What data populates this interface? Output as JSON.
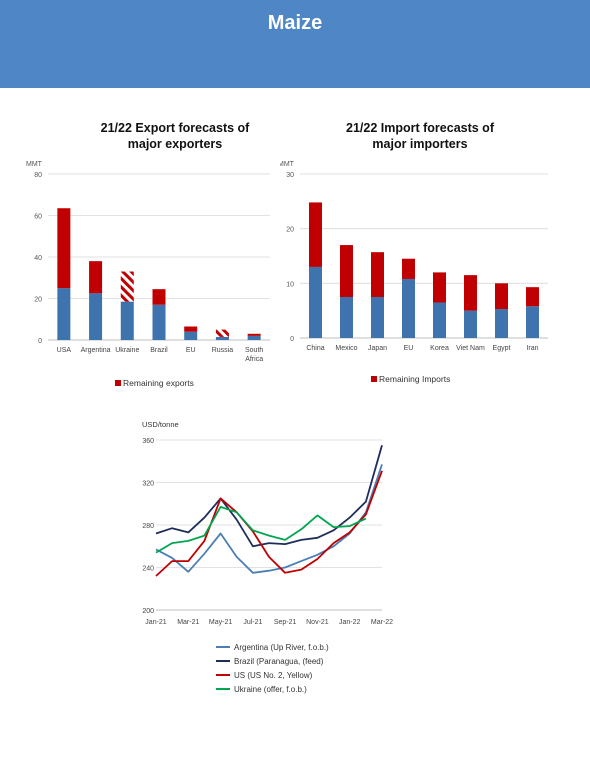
{
  "header": {
    "title": "Maize",
    "bg_color": "#4f86c6"
  },
  "colors": {
    "base": "#3e73ad",
    "remaining": "#c00000",
    "grid": "#d9d9d9"
  },
  "chart_data": [
    {
      "type": "bar",
      "title_lines": [
        "21/22 Export forecasts of",
        "major exporters"
      ],
      "ylabel": "MMT",
      "ylim": [
        0,
        80
      ],
      "yticks": [
        0,
        20,
        40,
        60,
        80
      ],
      "categories": [
        "USA",
        "Argentina",
        "Ukraine",
        "Brazil",
        "EU",
        "Russia",
        "South Africa"
      ],
      "category_label_lines": [
        [
          "USA"
        ],
        [
          "Argentina"
        ],
        [
          "Ukraine"
        ],
        [
          "Brazil"
        ],
        [
          "EU"
        ],
        [
          "Russia"
        ],
        [
          "South",
          "Africa"
        ]
      ],
      "series": [
        {
          "values": [
            25,
            22.5,
            18.5,
            17,
            4,
            1.5,
            2
          ]
        },
        {
          "name": "Remaining exports",
          "values": [
            38.5,
            15.5,
            14.5,
            7.5,
            2.5,
            3.5,
            1
          ]
        }
      ],
      "hatched_remaining": [
        false,
        false,
        true,
        false,
        false,
        true,
        false
      ],
      "legend": "Remaining exports",
      "legend_position": "bottom",
      "grid": true
    },
    {
      "type": "bar",
      "title_lines": [
        "21/22 Import forecasts of",
        "major importers"
      ],
      "ylabel": "MMT",
      "ylim": [
        0,
        30
      ],
      "yticks": [
        0,
        10,
        20,
        30
      ],
      "categories": [
        "China",
        "Mexico",
        "Japan",
        "EU",
        "Korea",
        "Viet Nam",
        "Egypt",
        "Iran"
      ],
      "category_label_lines": [
        [
          "China"
        ],
        [
          "Mexico"
        ],
        [
          "Japan"
        ],
        [
          "EU"
        ],
        [
          "Korea"
        ],
        [
          "Viet Nam"
        ],
        [
          "Egypt"
        ],
        [
          "Iran"
        ]
      ],
      "series": [
        {
          "values": [
            13,
            7.5,
            7.5,
            10.8,
            6.5,
            5,
            5.3,
            5.8
          ]
        },
        {
          "name": "Remaining Imports",
          "values": [
            11.8,
            9.5,
            8.2,
            3.7,
            5.5,
            6.5,
            4.7,
            3.5
          ]
        }
      ],
      "hatched_remaining": [
        false,
        false,
        false,
        false,
        false,
        false,
        false,
        false
      ],
      "legend": "Remaining Imports",
      "legend_position": "bottom",
      "grid": true
    },
    {
      "type": "line",
      "ylabel": "USD/tonne",
      "ylim": [
        200,
        360
      ],
      "yticks": [
        200,
        240,
        280,
        320,
        360
      ],
      "x": [
        "Jan-21",
        "Feb-21",
        "Mar-21",
        "Apr-21",
        "May-21",
        "Jun-21",
        "Jul-21",
        "Aug-21",
        "Sep-21",
        "Oct-21",
        "Nov-21",
        "Dec-21",
        "Jan-22",
        "Feb-22",
        "Mar-22"
      ],
      "xticks": [
        "Jan-21",
        "Mar-21",
        "May-21",
        "Jul-21",
        "Sep-21",
        "Nov-21",
        "Jan-22",
        "Mar-22"
      ],
      "series": [
        {
          "name": "Argentina (Up River, f.o.b.)",
          "color": "#4a7fb5",
          "values": [
            257,
            249,
            236,
            253,
            272,
            250,
            235,
            237,
            240,
            246,
            252,
            260,
            272,
            292,
            337
          ]
        },
        {
          "name": "Brazil (Paranagua, (feed)",
          "color": "#1f2d5c",
          "values": [
            272,
            277,
            273,
            287,
            305,
            285,
            260,
            263,
            262,
            266,
            268,
            275,
            287,
            302,
            355
          ]
        },
        {
          "name": "US (US No. 2, Yellow)",
          "color": "#c00000",
          "values": [
            232,
            246,
            246,
            265,
            305,
            292,
            274,
            250,
            235,
            238,
            248,
            263,
            273,
            290,
            331
          ]
        },
        {
          "name": "Ukraine (offer, f.o.b.)",
          "color": "#00a650",
          "values": [
            254,
            263,
            265,
            270,
            297,
            292,
            275,
            270,
            266,
            276,
            289,
            278,
            279,
            286,
            null
          ]
        }
      ],
      "legend_position": "bottom",
      "grid": true
    }
  ]
}
